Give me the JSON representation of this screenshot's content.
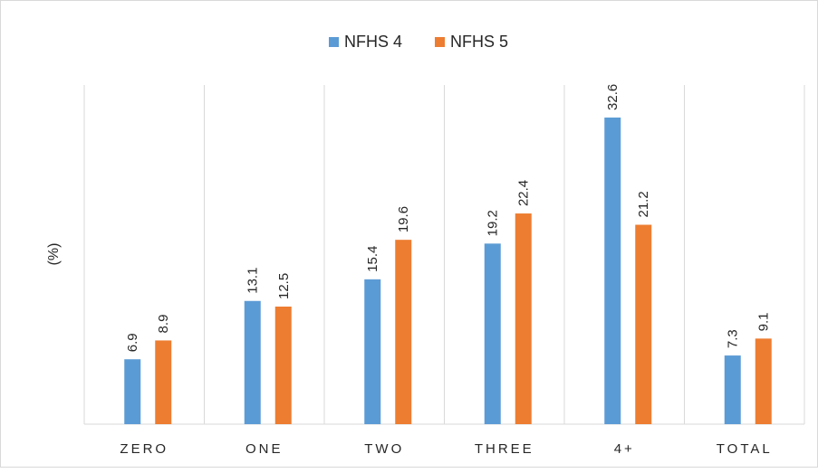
{
  "chart_data": {
    "type": "bar",
    "title": "",
    "xlabel": "",
    "ylabel": "(%)",
    "ylim": [
      0,
      35
    ],
    "grid": "vertical category separators",
    "legend_position": "top",
    "categories": [
      "ZERO",
      "ONE",
      "TWO",
      "THREE",
      "4+",
      "TOTAL"
    ],
    "series": [
      {
        "name": "NFHS 4",
        "color": "#5b9bd5",
        "values": [
          6.9,
          13.1,
          15.4,
          19.2,
          32.6,
          7.3
        ]
      },
      {
        "name": "NFHS 5",
        "color": "#ed7d31",
        "values": [
          8.9,
          12.5,
          19.6,
          22.4,
          21.2,
          9.1
        ]
      }
    ]
  }
}
